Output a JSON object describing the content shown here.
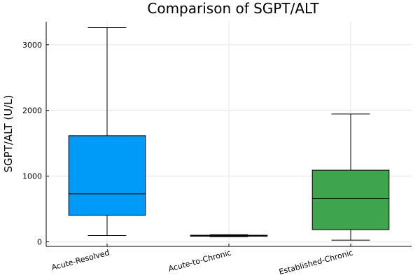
{
  "chart_data": {
    "type": "box",
    "title": "Comparison of SGPT/ALT",
    "xlabel": "",
    "ylabel": "SGPT/ALT (U/L)",
    "categories": [
      "Acute-Resolved",
      "Acute-to-Chronic",
      "Established-Chronic"
    ],
    "series": [
      {
        "min": 95,
        "q1": 405,
        "median": 730,
        "q3": 1615,
        "max": 3260,
        "color": "#009af9"
      },
      {
        "min": 78,
        "q1": 85,
        "median": 92,
        "q3": 100,
        "max": 108,
        "color": "#e26f46"
      },
      {
        "min": 25,
        "q1": 185,
        "median": 660,
        "q3": 1090,
        "max": 1945,
        "color": "#3ea44e"
      }
    ],
    "ylim": [
      -70,
      3350
    ],
    "yticks": [
      0,
      1000,
      2000,
      3000
    ],
    "grid": true,
    "legend": "none"
  }
}
